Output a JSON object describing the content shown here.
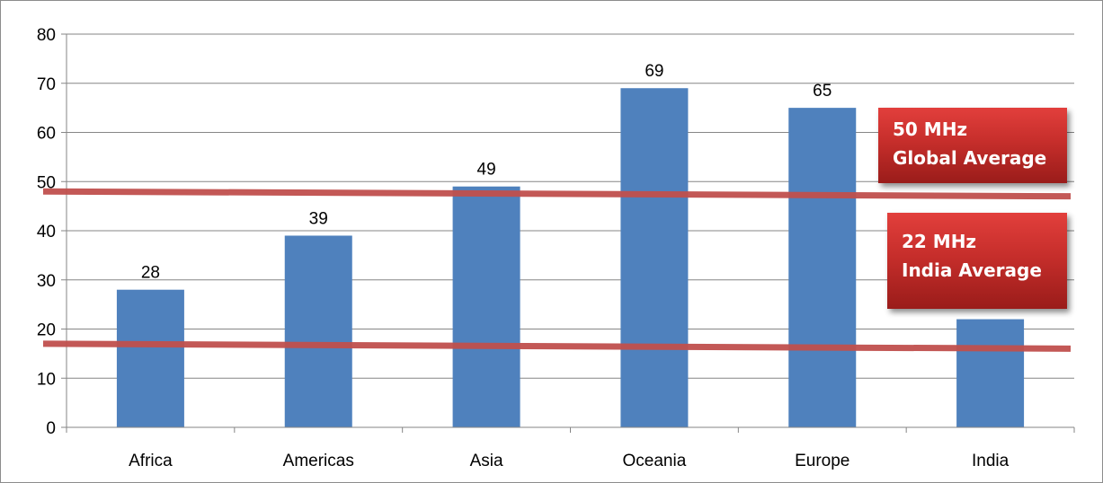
{
  "chart_data": {
    "type": "bar",
    "categories": [
      "Africa",
      "Americas",
      "Asia",
      "Oceania",
      "Europe",
      "India"
    ],
    "values": [
      28,
      39,
      49,
      69,
      65,
      22
    ],
    "data_labels": [
      "28",
      "39",
      "49",
      "69",
      "65",
      "22"
    ],
    "ylim": [
      0,
      80
    ],
    "yticks": [
      0,
      10,
      20,
      30,
      40,
      50,
      60,
      70,
      80
    ],
    "grid": true,
    "bar_color": "#4f81bd",
    "reference_lines": [
      {
        "name": "Global Average",
        "y_start": 48,
        "y_end": 47,
        "color": "#c0504d"
      },
      {
        "name": "India Average",
        "y_start": 17,
        "y_end": 16,
        "color": "#c0504d"
      }
    ],
    "annotations": [
      {
        "line1": "50 MHz",
        "line2": "Global Average"
      },
      {
        "line1": "22 MHz",
        "line2": "India Average"
      }
    ],
    "title": "",
    "xlabel": "",
    "ylabel": ""
  }
}
